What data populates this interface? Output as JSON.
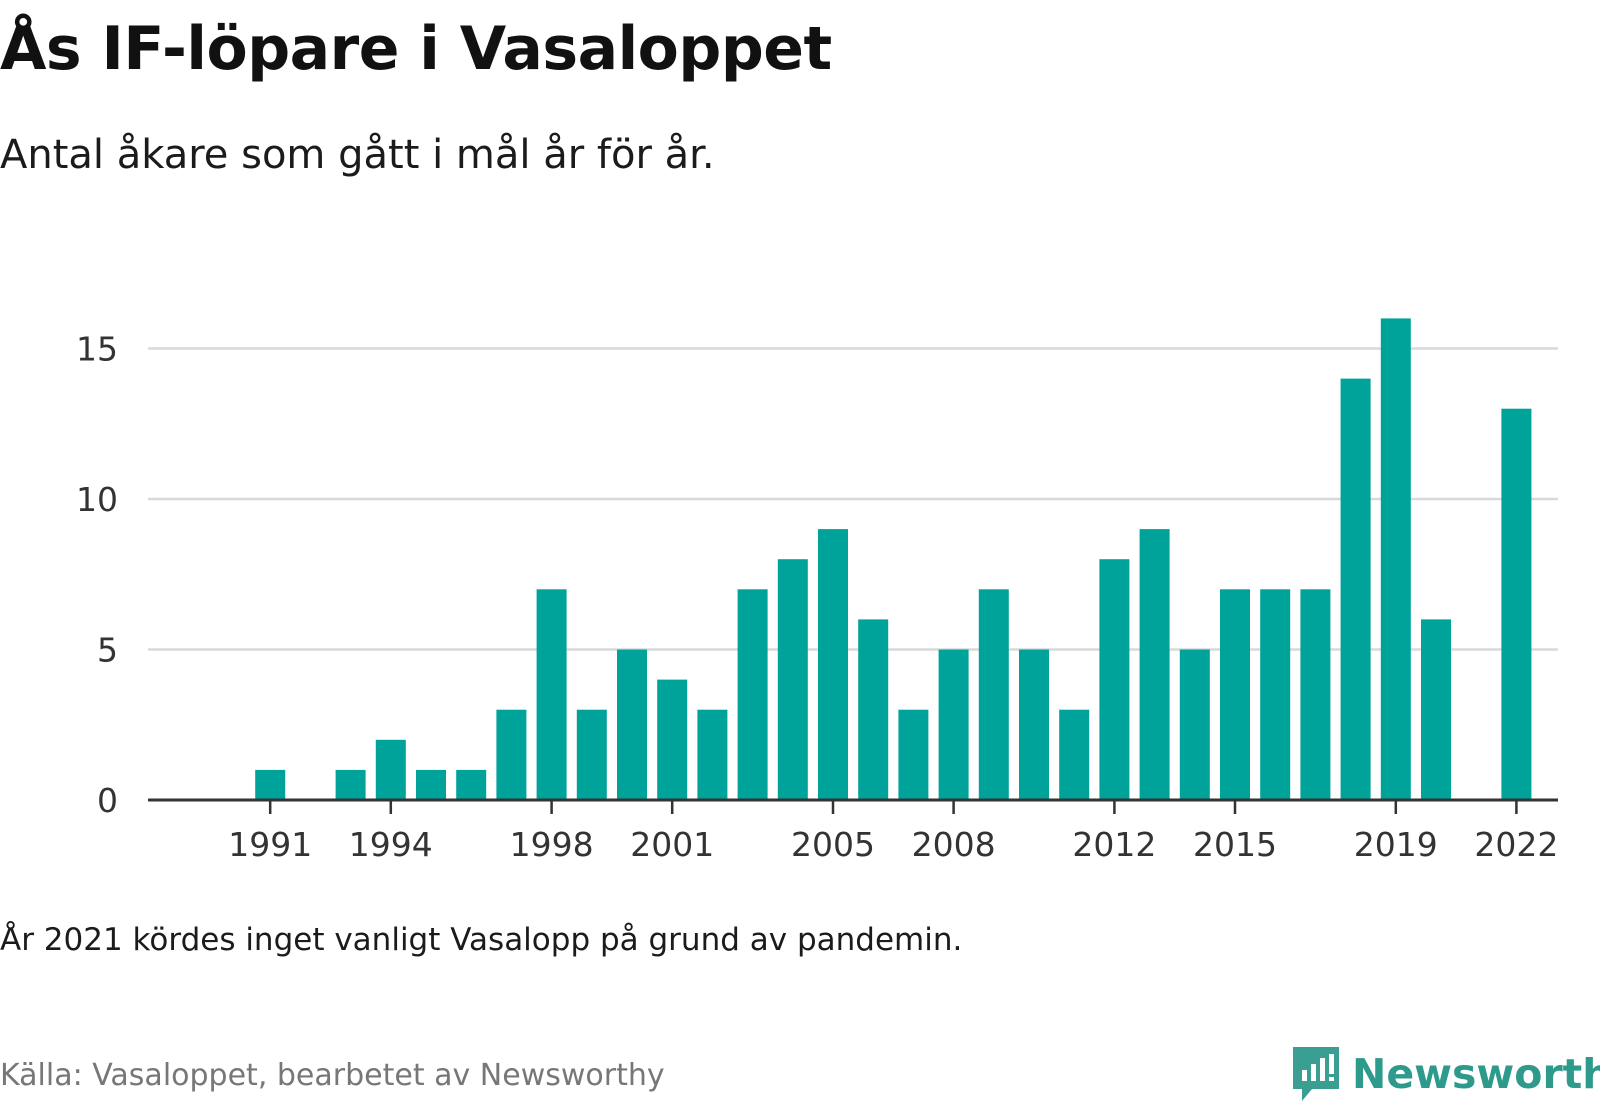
{
  "header": {
    "title": "Ås IF-löpare i Vasaloppet",
    "subtitle": "Antal åkare som gått i mål år för år."
  },
  "footer": {
    "note": "År 2021 kördes inget vanligt Vasalopp på grund av pandemin.",
    "source": "Källa: Vasaloppet, bearbetet av Newsworthy",
    "brand": "Newsworthy"
  },
  "colors": {
    "bar": "#00a39a",
    "grid": "#d9d9d9",
    "axis": "#333333",
    "brand": "#2e9a8c"
  },
  "icons": {
    "logo": "newsworthy-logo-icon"
  },
  "chart_data": {
    "type": "bar",
    "title": "Ås IF-löpare i Vasaloppet",
    "subtitle": "Antal åkare som gått i mål år för år.",
    "xlabel": "",
    "ylabel": "",
    "categories": [
      1990,
      1991,
      1992,
      1993,
      1994,
      1995,
      1996,
      1997,
      1998,
      1999,
      2000,
      2001,
      2002,
      2003,
      2004,
      2005,
      2006,
      2007,
      2008,
      2009,
      2010,
      2011,
      2012,
      2013,
      2014,
      2015,
      2016,
      2017,
      2018,
      2019,
      2020,
      2021,
      2022
    ],
    "values": [
      0,
      1,
      0,
      1,
      2,
      1,
      1,
      3,
      7,
      3,
      5,
      4,
      3,
      7,
      8,
      9,
      6,
      3,
      5,
      7,
      5,
      3,
      8,
      9,
      5,
      7,
      7,
      7,
      14,
      16,
      6,
      0,
      13
    ],
    "x_tick_labels": [
      "1991",
      "1994",
      "1998",
      "2001",
      "2005",
      "2008",
      "2012",
      "2015",
      "2019",
      "2022"
    ],
    "y_ticks": [
      0,
      5,
      10,
      15
    ],
    "ylim": [
      0,
      16
    ],
    "grid": true,
    "legend": "none"
  }
}
